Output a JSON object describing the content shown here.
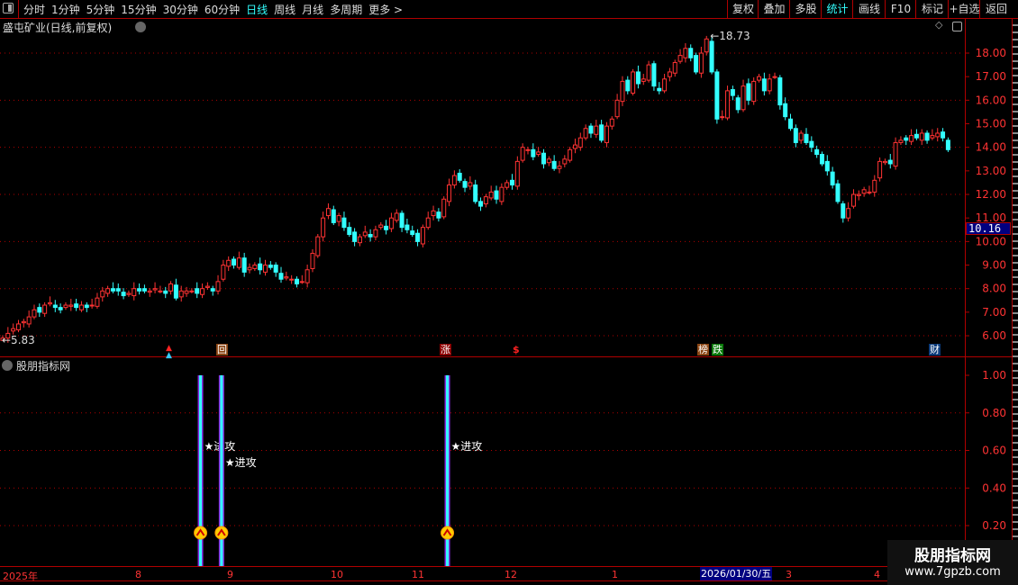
{
  "toolbar": {
    "periods": [
      "分时",
      "1分钟",
      "5分钟",
      "15分钟",
      "30分钟",
      "60分钟",
      "日线",
      "周线",
      "月线",
      "多周期",
      "更多 >"
    ],
    "active_period": "日线",
    "right_buttons": [
      "复权",
      "叠加",
      "多股",
      "统计",
      "画线",
      "F10",
      "标记",
      "+自选",
      "返回"
    ],
    "active_right": "统计"
  },
  "main": {
    "title": "盛屯矿业(日线,前复权)",
    "cursor_price": "10.16",
    "high_label": "18.73",
    "low_label": "5.83",
    "event_tags": [
      {
        "text": "回",
        "color": "#8b4513"
      },
      {
        "text": "涨",
        "color": "#8b0000"
      },
      {
        "text": "$",
        "color": "#000000"
      },
      {
        "text": "榜",
        "color": "#8b4513"
      },
      {
        "text": "跌",
        "color": "#0a7a0a"
      },
      {
        "text": "财",
        "color": "#0a3a7a"
      }
    ]
  },
  "indicator": {
    "title": "股朋指标网",
    "signal_label": "★进攻"
  },
  "time_axis": {
    "labels": [
      "2025年",
      "8",
      "9",
      "10",
      "11",
      "12",
      "1",
      "3",
      "4"
    ],
    "cursor_date": "2026/01/30/五"
  },
  "watermark": {
    "name": "股朋指标网",
    "url": "www.7gpzb.com"
  },
  "colors": {
    "up": "#ff3333",
    "down": "#33ffff",
    "grid": "#b00000",
    "axis_text": "#ff3333",
    "signal": "#33ffff",
    "signal_edge": "#8a2be2"
  },
  "chart_data": [
    {
      "type": "candlestick",
      "title": "盛屯矿业(日线,前复权)",
      "ylim": [
        5.5,
        19
      ],
      "yticks": [
        6,
        7,
        8,
        9,
        10,
        11,
        12,
        13,
        14,
        15,
        16,
        17,
        18
      ],
      "grid": true,
      "high": 18.73,
      "low": 5.83,
      "close": [
        5.9,
        6.1,
        6.3,
        6.5,
        6.6,
        6.8,
        7.1,
        7.0,
        7.3,
        7.4,
        7.2,
        7.1,
        7.3,
        7.3,
        7.2,
        7.3,
        7.2,
        7.3,
        7.6,
        7.9,
        8.0,
        7.9,
        7.9,
        7.7,
        7.8,
        8.0,
        7.9,
        7.9,
        7.9,
        8.0,
        7.9,
        7.8,
        8.2,
        7.6,
        7.9,
        7.9,
        7.9,
        7.8,
        8.0,
        8.1,
        7.9,
        8.3,
        9.0,
        9.2,
        9.0,
        9.3,
        8.7,
        8.9,
        9.0,
        8.8,
        9.0,
        8.9,
        8.7,
        8.4,
        8.5,
        8.4,
        8.2,
        8.3,
        8.8,
        9.5,
        10.2,
        11.0,
        11.4,
        10.8,
        11.1,
        10.6,
        10.3,
        10.0,
        10.2,
        10.4,
        10.2,
        10.5,
        10.7,
        10.5,
        11.0,
        11.2,
        10.6,
        10.5,
        10.3,
        10.0,
        10.6,
        11.0,
        11.3,
        11.0,
        11.8,
        12.4,
        12.8,
        12.6,
        12.3,
        12.5,
        11.7,
        11.5,
        11.9,
        12.1,
        11.8,
        12.3,
        12.5,
        12.4,
        13.4,
        14.0,
        13.9,
        13.6,
        13.8,
        13.3,
        13.5,
        13.1,
        13.2,
        13.5,
        13.9,
        14.1,
        14.4,
        14.8,
        14.6,
        14.9,
        14.3,
        14.9,
        15.2,
        16.0,
        16.8,
        16.4,
        17.2,
        16.7,
        16.9,
        17.5,
        16.6,
        16.4,
        16.9,
        17.2,
        17.6,
        17.9,
        18.2,
        17.8,
        17.2,
        18.0,
        18.6,
        17.2,
        15.2,
        15.3,
        16.4,
        16.2,
        15.6,
        16.6,
        16.0,
        16.8,
        17.0,
        16.4,
        16.9,
        17.0,
        15.8,
        15.3,
        14.8,
        14.2,
        14.6,
        14.2,
        14.0,
        13.7,
        13.3,
        13.0,
        12.4,
        11.7,
        11.0,
        11.4,
        12.0,
        12.0,
        12.2,
        12.1,
        12.6,
        13.4,
        13.4,
        13.3,
        14.2,
        14.3,
        14.3,
        14.5,
        14.4,
        14.6,
        14.3,
        14.5,
        14.6,
        14.4,
        13.9
      ]
    },
    {
      "type": "bar",
      "title": "股朋指标网",
      "ylim": [
        0.1,
        1.05
      ],
      "yticks": [
        0.2,
        0.4,
        0.6,
        0.8,
        1.0
      ],
      "signal_bar_indices": [
        38,
        42,
        85
      ],
      "signal_value": 1.0
    }
  ]
}
